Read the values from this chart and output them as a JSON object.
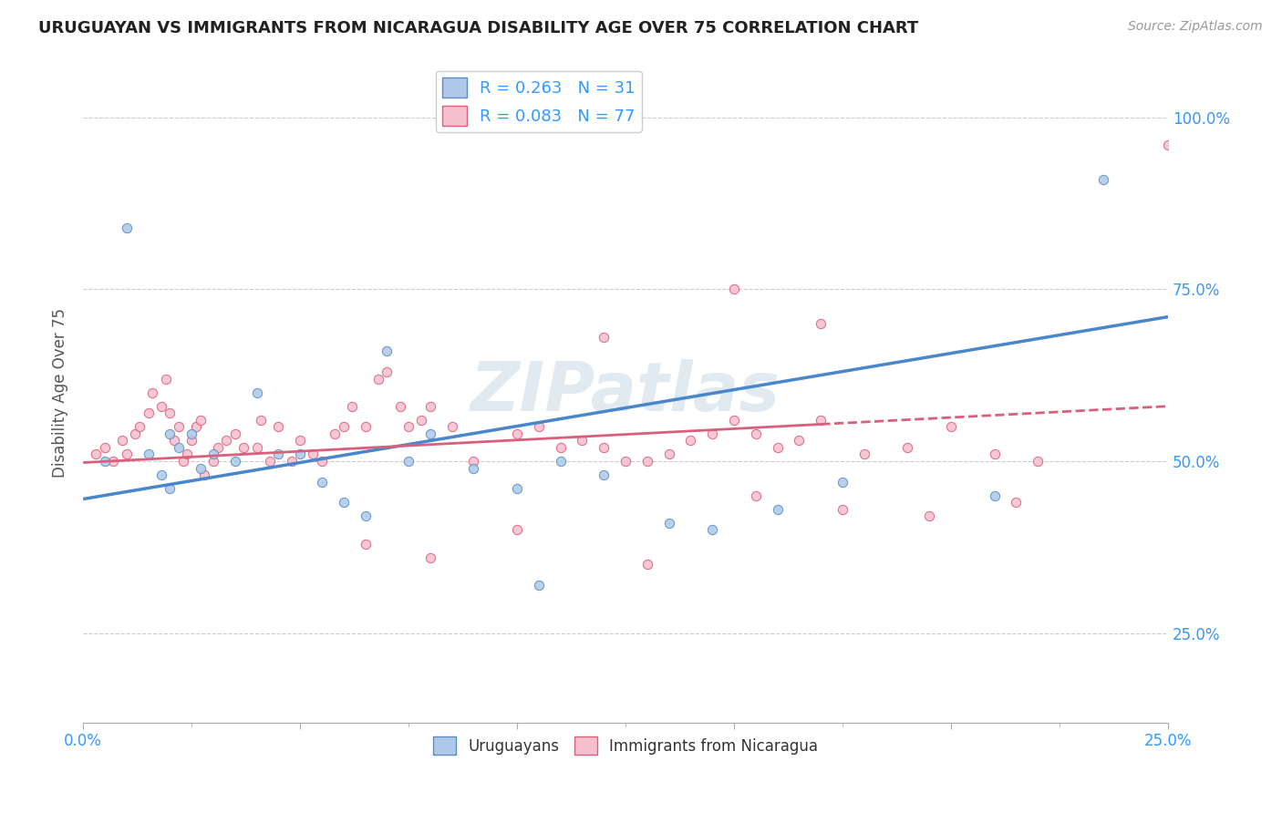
{
  "title": "URUGUAYAN VS IMMIGRANTS FROM NICARAGUA DISABILITY AGE OVER 75 CORRELATION CHART",
  "source_text": "Source: ZipAtlas.com",
  "ylabel": "Disability Age Over 75",
  "xlim": [
    0.0,
    0.25
  ],
  "ylim": [
    0.12,
    1.08
  ],
  "xticks": [
    0.0,
    0.05,
    0.1,
    0.15,
    0.2,
    0.25
  ],
  "yticks": [
    0.25,
    0.5,
    0.75,
    1.0
  ],
  "blue_R": 0.263,
  "blue_N": 31,
  "pink_R": 0.083,
  "pink_N": 77,
  "blue_color": "#adc8e8",
  "blue_edge": "#5b8ec4",
  "pink_color": "#f5bfce",
  "pink_edge": "#d9607a",
  "trend_blue": "#4a86cc",
  "trend_pink": "#d9607a",
  "watermark": "ZIPatlas",
  "watermark_color": "#cddce8",
  "legend_color": "#3399ff",
  "blue_label": "Uruguayans",
  "pink_label": "Immigrants from Nicaragua",
  "blue_x": [
    0.005,
    0.01,
    0.015,
    0.018,
    0.02,
    0.02,
    0.022,
    0.025,
    0.027,
    0.03,
    0.035,
    0.04,
    0.045,
    0.05,
    0.055,
    0.06,
    0.065,
    0.07,
    0.075,
    0.08,
    0.09,
    0.1,
    0.105,
    0.11,
    0.12,
    0.135,
    0.145,
    0.16,
    0.175,
    0.21,
    0.235
  ],
  "blue_y": [
    0.5,
    0.84,
    0.51,
    0.48,
    0.54,
    0.46,
    0.52,
    0.54,
    0.49,
    0.51,
    0.5,
    0.6,
    0.51,
    0.51,
    0.47,
    0.44,
    0.42,
    0.66,
    0.5,
    0.54,
    0.49,
    0.46,
    0.32,
    0.5,
    0.48,
    0.41,
    0.4,
    0.43,
    0.47,
    0.45,
    0.91
  ],
  "pink_x": [
    0.003,
    0.005,
    0.007,
    0.009,
    0.01,
    0.012,
    0.013,
    0.015,
    0.016,
    0.018,
    0.019,
    0.02,
    0.021,
    0.022,
    0.023,
    0.024,
    0.025,
    0.026,
    0.027,
    0.028,
    0.03,
    0.031,
    0.033,
    0.035,
    0.037,
    0.04,
    0.041,
    0.043,
    0.045,
    0.048,
    0.05,
    0.053,
    0.055,
    0.058,
    0.06,
    0.062,
    0.065,
    0.068,
    0.07,
    0.073,
    0.075,
    0.078,
    0.08,
    0.085,
    0.09,
    0.1,
    0.105,
    0.11,
    0.115,
    0.12,
    0.125,
    0.13,
    0.135,
    0.14,
    0.145,
    0.15,
    0.155,
    0.16,
    0.165,
    0.17,
    0.18,
    0.19,
    0.2,
    0.21,
    0.22,
    0.15,
    0.17,
    0.25,
    0.12,
    0.065,
    0.08,
    0.1,
    0.13,
    0.155,
    0.175,
    0.195,
    0.215
  ],
  "pink_y": [
    0.51,
    0.52,
    0.5,
    0.53,
    0.51,
    0.54,
    0.55,
    0.57,
    0.6,
    0.58,
    0.62,
    0.57,
    0.53,
    0.55,
    0.5,
    0.51,
    0.53,
    0.55,
    0.56,
    0.48,
    0.5,
    0.52,
    0.53,
    0.54,
    0.52,
    0.52,
    0.56,
    0.5,
    0.55,
    0.5,
    0.53,
    0.51,
    0.5,
    0.54,
    0.55,
    0.58,
    0.55,
    0.62,
    0.63,
    0.58,
    0.55,
    0.56,
    0.58,
    0.55,
    0.5,
    0.54,
    0.55,
    0.52,
    0.53,
    0.52,
    0.5,
    0.5,
    0.51,
    0.53,
    0.54,
    0.56,
    0.54,
    0.52,
    0.53,
    0.56,
    0.51,
    0.52,
    0.55,
    0.51,
    0.5,
    0.75,
    0.7,
    0.96,
    0.68,
    0.38,
    0.36,
    0.4,
    0.35,
    0.45,
    0.43,
    0.42,
    0.44
  ]
}
